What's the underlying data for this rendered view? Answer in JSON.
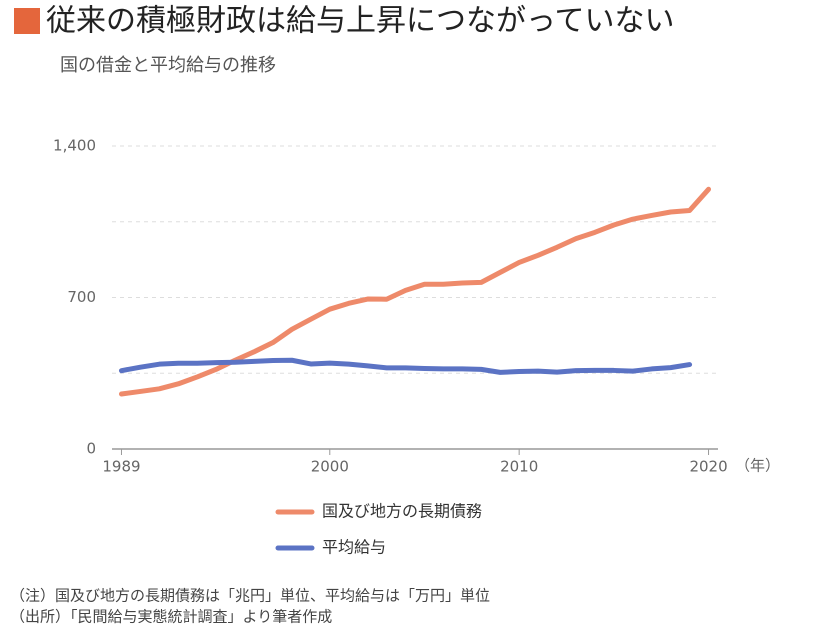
{
  "chart_data": {
    "type": "line",
    "title": "従来の積極財政は給与上昇につながっていない",
    "subtitle": "国の借金と平均給与の推移",
    "x_label": "（年）",
    "x": [
      1989,
      1990,
      1991,
      1992,
      1993,
      1994,
      1995,
      1996,
      1997,
      1998,
      1999,
      2000,
      2001,
      2002,
      2003,
      2004,
      2005,
      2006,
      2007,
      2008,
      2009,
      2010,
      2011,
      2012,
      2013,
      2014,
      2015,
      2016,
      2017,
      2018,
      2019,
      2020
    ],
    "series": [
      {
        "name": "国及び地方の長期債務",
        "color": "#ee8a6a",
        "values": [
          254,
          266,
          278,
          301,
          333,
          368,
          410,
          449,
          492,
          553,
          600,
          646,
          673,
          693,
          692,
          733,
          761,
          761,
          767,
          770,
          816,
          862,
          895,
          932,
          972,
          1001,
          1035,
          1062,
          1079,
          1095,
          1102,
          1200
        ]
      },
      {
        "name": "平均給与",
        "color": "#5b73c4",
        "values": [
          362,
          378,
          392,
          396,
          396,
          399,
          401,
          405,
          409,
          410,
          393,
          397,
          392,
          384,
          375,
          375,
          372,
          370,
          370,
          368,
          354,
          358,
          360,
          355,
          362,
          363,
          363,
          360,
          370,
          376,
          390,
          null
        ]
      }
    ],
    "xlim": [
      1988.5,
      2020.5
    ],
    "xticks": [
      1989,
      2000,
      2010,
      2020
    ],
    "ylim": [
      0,
      1400
    ],
    "yticks": [
      0,
      700,
      {
        "value": 1400,
        "label": "1,400"
      }
    ],
    "minor_yticks": [
      350,
      1050
    ],
    "grid": true,
    "legend": "bottom",
    "notes": [
      "（注）国及び地方の長期債務は「兆円」単位、平均給与は「万円」単位",
      "（出所）「民間給与実態統計調査」より筆者作成"
    ]
  }
}
